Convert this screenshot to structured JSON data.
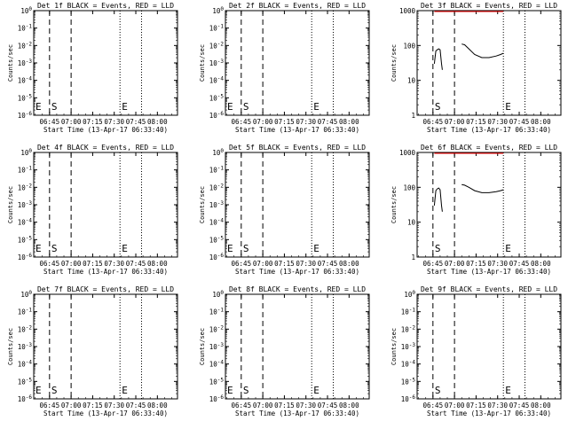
{
  "chart_data": [
    {
      "type": "line",
      "title": "Det 1f BLACK = Events, RED = LLD",
      "ylabel": "Counts/sec",
      "xlabel": "Start Time (13-Apr-17 06:33:40)",
      "xticks": [
        "06:45",
        "07:00",
        "07:15",
        "07:30",
        "07:45",
        "08:00"
      ],
      "xlim_min": [
        0,
        100
      ],
      "ylog": true,
      "ytick_exponents": [
        -6,
        -5,
        -4,
        -3,
        -2,
        -1,
        0
      ],
      "ytick_labels": [
        "10^-6",
        "10^-5",
        "10^-4",
        "10^-3",
        "10^-2",
        "10^-1",
        "10^0"
      ],
      "dashed_lines_min": [
        11,
        26
      ],
      "dotted_lines_min": [
        60,
        75
      ],
      "markers": [
        {
          "label": "E",
          "x_min": 0
        },
        {
          "label": "S",
          "x_min": 11
        },
        {
          "label": "E",
          "x_min": 60
        }
      ],
      "series": []
    },
    {
      "type": "line",
      "title": "Det 2f BLACK = Events, RED = LLD",
      "ylabel": "Counts/sec",
      "xlabel": "Start Time (13-Apr-17 06:33:40)",
      "xticks": [
        "06:45",
        "07:00",
        "07:15",
        "07:30",
        "07:45",
        "08:00"
      ],
      "xlim_min": [
        0,
        100
      ],
      "ylog": true,
      "ytick_exponents": [
        -6,
        -5,
        -4,
        -3,
        -2,
        -1,
        0
      ],
      "ytick_labels": [
        "10^-6",
        "10^-5",
        "10^-4",
        "10^-3",
        "10^-2",
        "10^-1",
        "10^0"
      ],
      "dashed_lines_min": [
        11,
        26
      ],
      "dotted_lines_min": [
        60,
        75
      ],
      "markers": [
        {
          "label": "E",
          "x_min": 0
        },
        {
          "label": "S",
          "x_min": 11
        },
        {
          "label": "E",
          "x_min": 60
        }
      ],
      "series": []
    },
    {
      "type": "line",
      "title": "Det 3f BLACK = Events, RED = LLD",
      "ylabel": "Counts/sec",
      "xlabel": "Start Time (13-Apr-17 06:33:40)",
      "xticks": [
        "06:45",
        "07:00",
        "07:15",
        "07:30",
        "07:45",
        "08:00"
      ],
      "xlim_min": [
        0,
        100
      ],
      "ylog": true,
      "ytick_exponents": [
        0,
        1,
        2,
        3
      ],
      "ytick_labels": [
        "1",
        "10",
        "100",
        "1000"
      ],
      "dashed_lines_min": [
        11,
        26
      ],
      "dotted_lines_min": [
        60,
        75
      ],
      "markers": [
        {
          "label": "S",
          "x_min": 11
        },
        {
          "label": "E",
          "x_min": 60
        }
      ],
      "red_line": {
        "start_min": 12,
        "end_min": 60,
        "value": 1000
      },
      "series": [
        {
          "color": "#000000",
          "segments": [
            {
              "x": [
                12,
                13,
                14,
                15,
                16,
                17,
                17.5
              ],
              "y": [
                30,
                70,
                75,
                80,
                75,
                30,
                20
              ]
            },
            {
              "x": [
                31,
                33,
                36,
                40,
                45,
                50,
                55,
                58,
                60
              ],
              "y": [
                110,
                105,
                80,
                55,
                45,
                45,
                50,
                55,
                60
              ]
            }
          ]
        }
      ]
    },
    {
      "type": "line",
      "title": "Det 4f BLACK = Events, RED = LLD",
      "ylabel": "Counts/sec",
      "xlabel": "Start Time (13-Apr-17 06:33:40)",
      "xticks": [
        "06:45",
        "07:00",
        "07:15",
        "07:30",
        "07:45",
        "08:00"
      ],
      "xlim_min": [
        0,
        100
      ],
      "ylog": true,
      "ytick_exponents": [
        -6,
        -5,
        -4,
        -3,
        -2,
        -1,
        0
      ],
      "ytick_labels": [
        "10^-6",
        "10^-5",
        "10^-4",
        "10^-3",
        "10^-2",
        "10^-1",
        "10^0"
      ],
      "dashed_lines_min": [
        11,
        26
      ],
      "dotted_lines_min": [
        60,
        75
      ],
      "markers": [
        {
          "label": "E",
          "x_min": 0
        },
        {
          "label": "S",
          "x_min": 11
        },
        {
          "label": "E",
          "x_min": 60
        }
      ],
      "series": []
    },
    {
      "type": "line",
      "title": "Det 5f BLACK = Events, RED = LLD",
      "ylabel": "Counts/sec",
      "xlabel": "Start Time (13-Apr-17 06:33:40)",
      "xticks": [
        "06:45",
        "07:00",
        "07:15",
        "07:30",
        "07:45",
        "08:00"
      ],
      "xlim_min": [
        0,
        100
      ],
      "ylog": true,
      "ytick_exponents": [
        -6,
        -5,
        -4,
        -3,
        -2,
        -1,
        0
      ],
      "ytick_labels": [
        "10^-6",
        "10^-5",
        "10^-4",
        "10^-3",
        "10^-2",
        "10^-1",
        "10^0"
      ],
      "dashed_lines_min": [
        11,
        26
      ],
      "dotted_lines_min": [
        60,
        75
      ],
      "markers": [
        {
          "label": "E",
          "x_min": 0
        },
        {
          "label": "S",
          "x_min": 11
        },
        {
          "label": "E",
          "x_min": 60
        }
      ],
      "series": []
    },
    {
      "type": "line",
      "title": "Det 6f BLACK = Events, RED = LLD",
      "ylabel": "Counts/sec",
      "xlabel": "Start Time (13-Apr-17 06:33:40)",
      "xticks": [
        "06:45",
        "07:00",
        "07:15",
        "07:30",
        "07:45",
        "08:00"
      ],
      "xlim_min": [
        0,
        100
      ],
      "ylog": true,
      "ytick_exponents": [
        0,
        1,
        2,
        3
      ],
      "ytick_labels": [
        "1",
        "10",
        "100",
        "1000"
      ],
      "dashed_lines_min": [
        11,
        26
      ],
      "dotted_lines_min": [
        60,
        75
      ],
      "markers": [
        {
          "label": "S",
          "x_min": 11
        },
        {
          "label": "E",
          "x_min": 60
        }
      ],
      "red_line": {
        "start_min": 12,
        "end_min": 60,
        "value": 1000
      },
      "series": [
        {
          "color": "#000000",
          "segments": [
            {
              "x": [
                12,
                13,
                14,
                15,
                16,
                17,
                17.5
              ],
              "y": [
                30,
                80,
                90,
                95,
                85,
                30,
                20
              ]
            },
            {
              "x": [
                31,
                33,
                36,
                40,
                45,
                50,
                55,
                58,
                60
              ],
              "y": [
                120,
                115,
                100,
                80,
                70,
                70,
                75,
                80,
                85
              ]
            }
          ]
        }
      ]
    },
    {
      "type": "line",
      "title": "Det 7f BLACK = Events, RED = LLD",
      "ylabel": "Counts/sec",
      "xlabel": "Start Time (13-Apr-17 06:33:40)",
      "xticks": [
        "06:45",
        "07:00",
        "07:15",
        "07:30",
        "07:45",
        "08:00"
      ],
      "xlim_min": [
        0,
        100
      ],
      "ylog": true,
      "ytick_exponents": [
        -6,
        -5,
        -4,
        -3,
        -2,
        -1,
        0
      ],
      "ytick_labels": [
        "10^-6",
        "10^-5",
        "10^-4",
        "10^-3",
        "10^-2",
        "10^-1",
        "10^0"
      ],
      "dashed_lines_min": [
        11,
        26
      ],
      "dotted_lines_min": [
        60,
        75
      ],
      "markers": [
        {
          "label": "E",
          "x_min": 0
        },
        {
          "label": "S",
          "x_min": 11
        },
        {
          "label": "E",
          "x_min": 60
        }
      ],
      "series": []
    },
    {
      "type": "line",
      "title": "Det 8f BLACK = Events, RED = LLD",
      "ylabel": "Counts/sec",
      "xlabel": "Start Time (13-Apr-17 06:33:40)",
      "xticks": [
        "06:45",
        "07:00",
        "07:15",
        "07:30",
        "07:45",
        "08:00"
      ],
      "xlim_min": [
        0,
        100
      ],
      "ylog": true,
      "ytick_exponents": [
        -6,
        -5,
        -4,
        -3,
        -2,
        -1,
        0
      ],
      "ytick_labels": [
        "10^-6",
        "10^-5",
        "10^-4",
        "10^-3",
        "10^-2",
        "10^-1",
        "10^0"
      ],
      "dashed_lines_min": [
        11,
        26
      ],
      "dotted_lines_min": [
        60,
        75
      ],
      "markers": [
        {
          "label": "E",
          "x_min": 0
        },
        {
          "label": "S",
          "x_min": 11
        },
        {
          "label": "E",
          "x_min": 60
        }
      ],
      "series": []
    },
    {
      "type": "line",
      "title": "Det 9f BLACK = Events, RED = LLD",
      "ylabel": "Counts/sec",
      "xlabel": "Start Time (13-Apr-17 06:33:40)",
      "xticks": [
        "06:45",
        "07:00",
        "07:15",
        "07:30",
        "07:45",
        "08:00"
      ],
      "xlim_min": [
        0,
        100
      ],
      "ylog": true,
      "ytick_exponents": [
        -6,
        -5,
        -4,
        -3,
        -2,
        -1,
        0
      ],
      "ytick_labels": [
        "10^-6",
        "10^-5",
        "10^-4",
        "10^-3",
        "10^-2",
        "10^-1",
        "10^0"
      ],
      "dashed_lines_min": [
        11,
        26
      ],
      "dotted_lines_min": [
        60,
        75
      ],
      "markers": [
        {
          "label": "S",
          "x_min": 11
        },
        {
          "label": "E",
          "x_min": 60
        }
      ],
      "series": []
    }
  ]
}
